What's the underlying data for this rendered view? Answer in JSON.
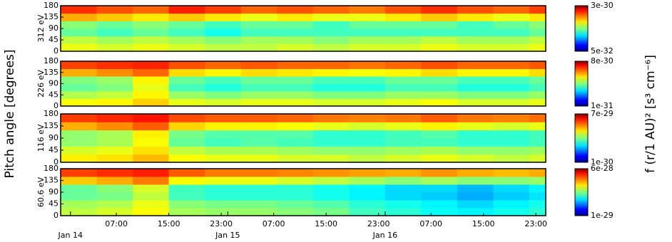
{
  "ylabel": "Pitch angle [degrees]",
  "colorbar_label": "f (r/1 AU)² [s³ cm⁻⁶]",
  "chart_data": [
    {
      "type": "heatmap",
      "ylabel": "312 eV",
      "xlim": [
        -1.5,
        72.5
      ],
      "ylim": [
        0,
        180
      ],
      "yticks": [
        0,
        45,
        90,
        135,
        180
      ],
      "x": [
        -1.5,
        4,
        9.5,
        15,
        20.5,
        26,
        31.5,
        37,
        42.5,
        48,
        53.5,
        59,
        64.5,
        70
      ],
      "y": [
        0,
        30,
        60,
        90,
        120,
        150
      ],
      "z": [
        [
          6e-31,
          5.5e-31,
          6e-31,
          5.5e-31,
          5e-31,
          5e-31,
          5.5e-31,
          5e-31,
          5.5e-31,
          5.5e-31,
          6e-31,
          5.5e-31,
          5.5e-31,
          6e-31
        ],
        [
          5e-31,
          4.5e-31,
          5e-31,
          4.5e-31,
          4e-31,
          4.5e-31,
          4.5e-31,
          4e-31,
          4.5e-31,
          4.5e-31,
          5e-31,
          4.5e-31,
          4.5e-31,
          5e-31
        ],
        [
          3.5e-31,
          3e-31,
          3.5e-31,
          3e-31,
          2.5e-31,
          3e-31,
          3e-31,
          3e-31,
          3e-31,
          3e-31,
          3e-31,
          3e-31,
          3e-31,
          3.5e-31
        ],
        [
          4e-31,
          3.5e-31,
          4e-31,
          3.5e-31,
          3e-31,
          3.5e-31,
          3.5e-31,
          3e-31,
          3.5e-31,
          3.5e-31,
          3.5e-31,
          3e-31,
          3.5e-31,
          4e-31
        ],
        [
          9e-31,
          8e-31,
          7e-31,
          8e-31,
          7e-31,
          6e-31,
          7e-31,
          6e-31,
          6e-31,
          7e-31,
          8e-31,
          7e-31,
          6e-31,
          7e-31
        ],
        [
          1.5e-30,
          1.3e-30,
          1.2e-30,
          1.6e-30,
          1.4e-30,
          1.2e-30,
          1.3e-30,
          1.2e-30,
          1.1e-30,
          1.3e-30,
          1.5e-30,
          1.3e-30,
          1.2e-30,
          1.4e-30
        ]
      ],
      "colorbar": {
        "log": true,
        "colormap": "jet",
        "lim": [
          5e-32,
          3e-30
        ],
        "ticks": [
          {
            "value": 5e-32,
            "label": "5e-32"
          },
          {
            "value": 3e-30,
            "label": "3e-30"
          }
        ]
      }
    },
    {
      "type": "heatmap",
      "ylabel": "226 eV",
      "xlim": [
        -1.5,
        72.5
      ],
      "ylim": [
        0,
        180
      ],
      "yticks": [
        0,
        45,
        90,
        135,
        180
      ],
      "x": [
        -1.5,
        4,
        9.5,
        15,
        20.5,
        26,
        31.5,
        37,
        42.5,
        48,
        53.5,
        59,
        64.5,
        70
      ],
      "y": [
        0,
        30,
        60,
        90,
        120,
        150
      ],
      "z": [
        [
          1.5e-30,
          1.6e-30,
          1.9e-30,
          1.4e-30,
          1.3e-30,
          1.4e-30,
          1.4e-30,
          1.3e-30,
          1.3e-30,
          1.4e-30,
          1.5e-30,
          1.3e-30,
          1.3e-30,
          1.4e-30
        ],
        [
          1.1e-30,
          1.2e-30,
          1.6e-30,
          1e-30,
          9e-31,
          1e-30,
          1e-30,
          9e-31,
          9e-31,
          1e-30,
          1e-30,
          9e-31,
          9e-31,
          1e-30
        ],
        [
          8e-31,
          9e-31,
          1.4e-30,
          7e-31,
          6e-31,
          7e-31,
          7e-31,
          6e-31,
          6e-31,
          7e-31,
          7e-31,
          6e-31,
          6e-31,
          7e-31
        ],
        [
          9e-31,
          1e-30,
          1.6e-30,
          8e-31,
          7e-31,
          8e-31,
          8e-31,
          7e-31,
          7e-31,
          8e-31,
          8e-31,
          7e-31,
          7e-31,
          8e-31
        ],
        [
          2.2e-30,
          2.5e-30,
          3e-30,
          1.8e-30,
          1.6e-30,
          1.8e-30,
          1.7e-30,
          1.6e-30,
          1.5e-30,
          1.6e-30,
          1.8e-30,
          1.6e-30,
          1.6e-30,
          1.8e-30
        ],
        [
          3.5e-30,
          3.8e-30,
          4e-30,
          3.3e-30,
          3e-30,
          3.2e-30,
          3e-30,
          3e-30,
          2.8e-30,
          3e-30,
          3.3e-30,
          3e-30,
          3e-30,
          3.2e-30
        ]
      ],
      "colorbar": {
        "log": true,
        "colormap": "jet",
        "lim": [
          1e-31,
          8e-30
        ],
        "ticks": [
          {
            "value": 1e-31,
            "label": "1e-31"
          },
          {
            "value": 8e-30,
            "label": "8e-30"
          }
        ]
      }
    },
    {
      "type": "heatmap",
      "ylabel": "116 eV",
      "xlim": [
        -1.5,
        72.5
      ],
      "ylim": [
        0,
        180
      ],
      "yticks": [
        0,
        45,
        90,
        135,
        180
      ],
      "x": [
        -1.5,
        4,
        9.5,
        15,
        20.5,
        26,
        31.5,
        37,
        42.5,
        48,
        53.5,
        59,
        64.5,
        70
      ],
      "y": [
        0,
        30,
        60,
        90,
        120,
        150
      ],
      "z": [
        [
          1.5e-29,
          1.6e-29,
          1.9e-29,
          1.4e-29,
          1.3e-29,
          1.3e-29,
          1.2e-29,
          1.2e-29,
          1.1e-29,
          1.2e-29,
          1.3e-29,
          1.2e-29,
          1.1e-29,
          1.2e-29
        ],
        [
          1.2e-29,
          1.3e-29,
          1.6e-29,
          1.1e-29,
          1e-29,
          1e-29,
          9.5e-30,
          9e-30,
          9e-30,
          9.5e-30,
          1e-29,
          9e-30,
          9e-30,
          9.5e-30
        ],
        [
          9e-30,
          1e-29,
          1.4e-29,
          7.5e-30,
          6.5e-30,
          7e-30,
          6.5e-30,
          6e-30,
          6e-30,
          6.5e-30,
          6.5e-30,
          6e-30,
          6e-30,
          6.5e-30
        ],
        [
          9e-30,
          1e-29,
          1.5e-29,
          8e-30,
          7e-30,
          7e-30,
          7e-30,
          6e-30,
          6e-30,
          6.5e-30,
          7e-30,
          6e-30,
          6e-30,
          6.5e-30
        ],
        [
          2e-29,
          2.3e-29,
          2.8e-29,
          1.7e-29,
          1.5e-29,
          1.5e-29,
          1.4e-29,
          1.3e-29,
          1.2e-29,
          1.3e-29,
          1.5e-29,
          1.3e-29,
          1.2e-29,
          1.3e-29
        ],
        [
          3.2e-29,
          3.5e-29,
          3.8e-29,
          3e-29,
          2.8e-29,
          2.8e-29,
          2.7e-29,
          2.5e-29,
          2.4e-29,
          2.5e-29,
          2.8e-29,
          2.5e-29,
          2.4e-29,
          2.6e-29
        ]
      ],
      "colorbar": {
        "log": true,
        "colormap": "jet",
        "lim": [
          1e-30,
          7e-29
        ],
        "ticks": [
          {
            "value": 1e-30,
            "label": "1e-30"
          },
          {
            "value": 7e-29,
            "label": "7e-29"
          }
        ]
      }
    },
    {
      "type": "heatmap",
      "ylabel": "60.6 eV",
      "xlim": [
        -1.5,
        72.5
      ],
      "ylim": [
        0,
        180
      ],
      "yticks": [
        0,
        45,
        90,
        135,
        180
      ],
      "x": [
        -1.5,
        4,
        9.5,
        15,
        20.5,
        26,
        31.5,
        37,
        42.5,
        48,
        53.5,
        59,
        64.5,
        70
      ],
      "y": [
        0,
        30,
        60,
        90,
        120,
        150
      ],
      "z": [
        [
          1e-28,
          1.1e-28,
          1.3e-28,
          9e-29,
          8.5e-29,
          8.5e-29,
          8e-29,
          7.5e-29,
          6e-29,
          5.5e-29,
          4.8e-29,
          4.5e-29,
          5e-29,
          5.5e-29
        ],
        [
          9e-29,
          9.5e-29,
          1.2e-28,
          8e-29,
          7.5e-29,
          7.5e-29,
          7e-29,
          6.5e-29,
          5.5e-29,
          5e-29,
          4.5e-29,
          4e-29,
          4.5e-29,
          5e-29
        ],
        [
          7e-29,
          7.5e-29,
          1e-28,
          6e-29,
          5.5e-29,
          5.5e-29,
          5.5e-29,
          5e-29,
          4.5e-29,
          4e-29,
          3.8e-29,
          3.3e-29,
          3.8e-29,
          4.2e-29
        ],
        [
          7e-29,
          8e-29,
          1.1e-28,
          6e-29,
          5.5e-29,
          5.5e-29,
          5.5e-29,
          5e-29,
          4.5e-29,
          4e-29,
          4e-29,
          3.5e-29,
          4e-29,
          4.5e-29
        ],
        [
          1.6e-28,
          1.8e-28,
          2.2e-28,
          1.3e-28,
          1.2e-28,
          1.2e-28,
          1.1e-28,
          1e-28,
          9e-29,
          8e-29,
          9e-29,
          8e-29,
          8e-29,
          8.5e-29
        ],
        [
          2.8e-28,
          3e-28,
          3.2e-28,
          2.5e-28,
          2.2e-28,
          2.2e-28,
          2.1e-28,
          2e-28,
          1.9e-28,
          1.8e-28,
          2e-28,
          1.8e-28,
          1.7e-28,
          1.8e-28
        ]
      ],
      "colorbar": {
        "log": true,
        "colormap": "jet",
        "lim": [
          1e-29,
          6e-28
        ],
        "ticks": [
          {
            "value": 1e-29,
            "label": "1e-29"
          },
          {
            "value": 6e-28,
            "label": "6e-28"
          }
        ]
      },
      "xticks": [
        {
          "value": 7,
          "label": "07:00"
        },
        {
          "value": 15,
          "label": "15:00"
        },
        {
          "value": 23,
          "label": "23:00"
        },
        {
          "value": 31,
          "label": "07:00"
        },
        {
          "value": 39,
          "label": "15:00"
        },
        {
          "value": 47,
          "label": "23:00"
        },
        {
          "value": 55,
          "label": "07:00"
        },
        {
          "value": 63,
          "label": "15:00"
        },
        {
          "value": 71,
          "label": "23:00"
        }
      ],
      "xticks_dates": [
        {
          "value": 0,
          "label": "Jan 14"
        },
        {
          "value": 24,
          "label": "Jan 15"
        },
        {
          "value": 48,
          "label": "Jan 16"
        }
      ]
    }
  ]
}
